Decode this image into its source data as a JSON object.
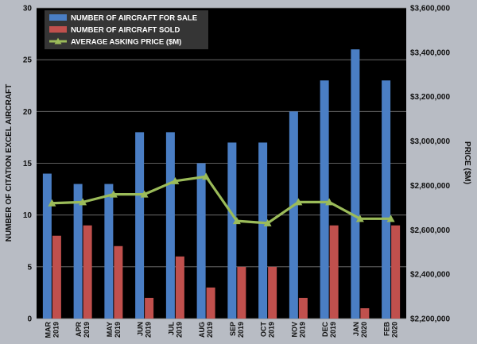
{
  "chart_data": {
    "type": "bar",
    "categories": [
      [
        "MAR",
        "2019"
      ],
      [
        "APR",
        "2019"
      ],
      [
        "MAY",
        "2019"
      ],
      [
        "JUN",
        "2019"
      ],
      [
        "JUL",
        "2019"
      ],
      [
        "AUG",
        "2019"
      ],
      [
        "SEP",
        "2019"
      ],
      [
        "OCT",
        "2019"
      ],
      [
        "NOV",
        "2019"
      ],
      [
        "DEC",
        "2019"
      ],
      [
        "JAN",
        "2020"
      ],
      [
        "FEB",
        "2020"
      ]
    ],
    "series": [
      {
        "name": "NUMBER OF AIRCRAFT FOR SALE",
        "type": "bar",
        "axis": "left",
        "color": "#4a7ec4",
        "values": [
          14,
          13,
          13,
          18,
          18,
          15,
          17,
          17,
          20,
          23,
          26,
          23
        ]
      },
      {
        "name": "NUMBER OF AIRCRAFT SOLD",
        "type": "bar",
        "axis": "left",
        "color": "#c0504d",
        "values": [
          8,
          9,
          7,
          2,
          6,
          3,
          5,
          5,
          2,
          9,
          1,
          9
        ]
      },
      {
        "name": "AVERAGE ASKING PRICE ($M)",
        "type": "line",
        "axis": "right",
        "color": "#9bbb59",
        "values": [
          2720000,
          2725000,
          2760000,
          2760000,
          2820000,
          2840000,
          2640000,
          2630000,
          2725000,
          2725000,
          2650000,
          2650000
        ]
      }
    ],
    "ylabel": "NUMBER OF CITATION EXCEL AIRCRAFT",
    "y2label": "PRICE ($M)",
    "ylim": [
      0,
      30
    ],
    "yticks": [
      "0",
      "5",
      "10",
      "15",
      "20",
      "25",
      "30"
    ],
    "y2lim": [
      2200000,
      3600000
    ],
    "y2ticks": [
      "$2,200,000",
      "$2,400,000",
      "$2,600,000",
      "$2,800,000",
      "$3,000,000",
      "$3,200,000",
      "$3,400,000",
      "$3,600,000"
    ],
    "grid": true,
    "legend": "top-left",
    "background": "#000000"
  }
}
